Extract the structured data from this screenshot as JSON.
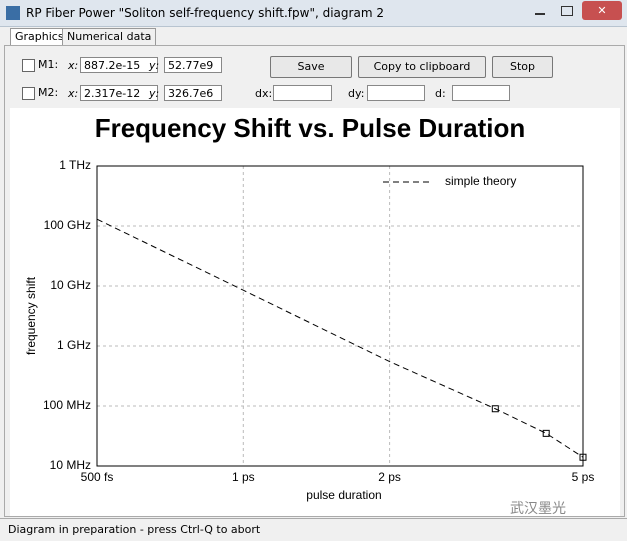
{
  "window": {
    "title": "RP Fiber Power \"Soliton self-frequency shift.fpw\", diagram 2",
    "tabs": [
      "Graphics",
      "Numerical data"
    ],
    "m1": {
      "label": "M1:",
      "x_label": "x:",
      "x": "887.2e-15",
      "y_label": "y:",
      "y": "52.77e9"
    },
    "m2": {
      "label": "M2:",
      "x_label": "x:",
      "x": "2.317e-12",
      "y_label": "y:",
      "y": "326.7e6"
    },
    "buttons": [
      "Save",
      "Copy to clipboard",
      "Stop"
    ],
    "dx_label": "dx:",
    "dy_label": "dy:",
    "d_label": "d:",
    "status": "Diagram in preparation - press Ctrl-Q to abort",
    "watermark": "武汉墨光"
  },
  "chart_data": {
    "type": "line",
    "title": "Frequency Shift vs. Pulse Duration",
    "xlabel": "pulse duration",
    "ylabel": "frequency shift",
    "xscale": "log",
    "yscale": "log",
    "grid": true,
    "legend": "top-right",
    "xlim": [
      5e-13,
      5e-12
    ],
    "xticks": [
      {
        "value": 5e-13,
        "label": "500 fs"
      },
      {
        "value": 1e-12,
        "label": "1 ps"
      },
      {
        "value": 2e-12,
        "label": "2 ps"
      },
      {
        "value": 5e-12,
        "label": "5 ps"
      }
    ],
    "ylim": [
      10000000.0,
      1000000000000.0
    ],
    "yticks": [
      {
        "value": 10000000.0,
        "label": "10 MHz"
      },
      {
        "value": 100000000.0,
        "label": "100 MHz"
      },
      {
        "value": 1000000000.0,
        "label": "1 GHz"
      },
      {
        "value": 10000000000.0,
        "label": "10 GHz"
      },
      {
        "value": 100000000000.0,
        "label": "100 GHz"
      },
      {
        "value": 1000000000000.0,
        "label": "1 THz"
      }
    ],
    "series": [
      {
        "name": "simple theory",
        "color": "#000000",
        "dash": "6,4",
        "x": [
          5e-13,
          1e-12,
          2e-12,
          3.3e-12,
          4.2e-12,
          5e-12
        ],
        "values": [
          130000000000.0,
          8500000000.0,
          550000000.0,
          90000000.0,
          35000000.0,
          14000000.0
        ]
      }
    ],
    "marker_x": [
      3.3e-12,
      4.2e-12,
      5e-12
    ],
    "marker_y": [
      90000000.0,
      35000000.0,
      14000000.0
    ]
  }
}
